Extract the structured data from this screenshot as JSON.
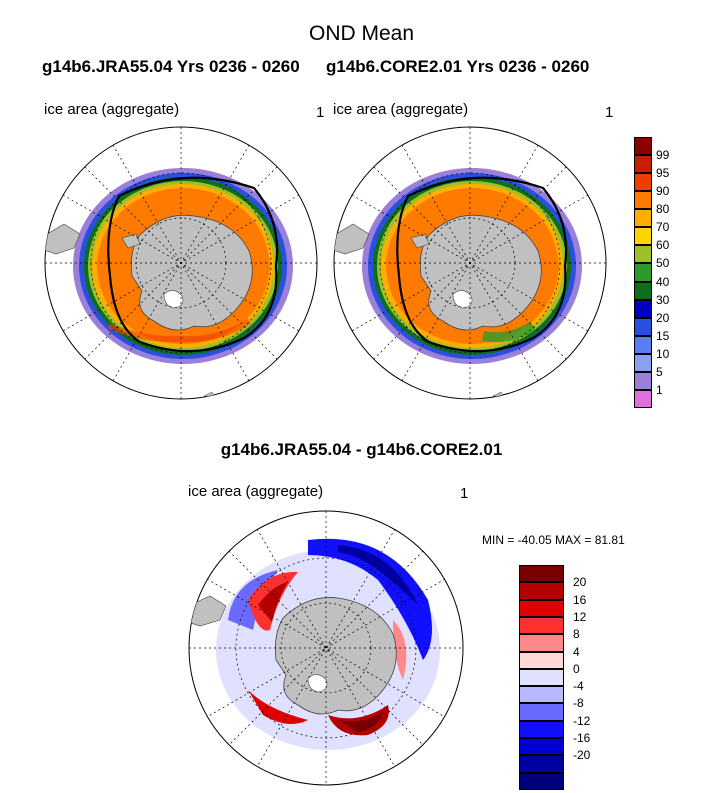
{
  "title": "OND Mean",
  "subtitle_left": "g14b6.JRA55.04  Yrs 0236 - 0260",
  "subtitle_right": "g14b6.CORE2.01  Yrs 0236 - 0260",
  "panels": [
    {
      "label": "ice area  (aggregate)",
      "number": "1"
    },
    {
      "label": "ice area  (aggregate)",
      "number": "1"
    },
    {
      "label": "ice area  (aggregate)",
      "number": "1"
    }
  ],
  "diff_title": "g14b6.JRA55.04 - g14b6.CORE2.01",
  "minmax": "MIN = -40.05 MAX =  81.81",
  "colorbar_top": {
    "labels": [
      "99",
      "95",
      "90",
      "80",
      "70",
      "60",
      "50",
      "40",
      "30",
      "20",
      "15",
      "10",
      "5",
      "1"
    ],
    "colors": [
      "#8b0000",
      "#c81e00",
      "#f03c00",
      "#ff7a00",
      "#ffae00",
      "#ffd200",
      "#9cbf2a",
      "#2e9a2e",
      "#0f6e1e",
      "#0000c0",
      "#2b4fe0",
      "#5a7df0",
      "#8aa0f0",
      "#9a80d8",
      "#e070e0"
    ]
  },
  "colorbar_bottom": {
    "labels": [
      "20",
      "16",
      "12",
      "8",
      "4",
      "0",
      "-4",
      "-8",
      "-12",
      "-16",
      "-20"
    ],
    "colors": [
      "#7a0000",
      "#b40000",
      "#e00000",
      "#ff3030",
      "#ff8888",
      "#ffd8d8",
      "#e0e0ff",
      "#b8b8ff",
      "#6a6aff",
      "#1010ff",
      "#0000d0",
      "#0000a0",
      "#00007a"
    ]
  }
}
